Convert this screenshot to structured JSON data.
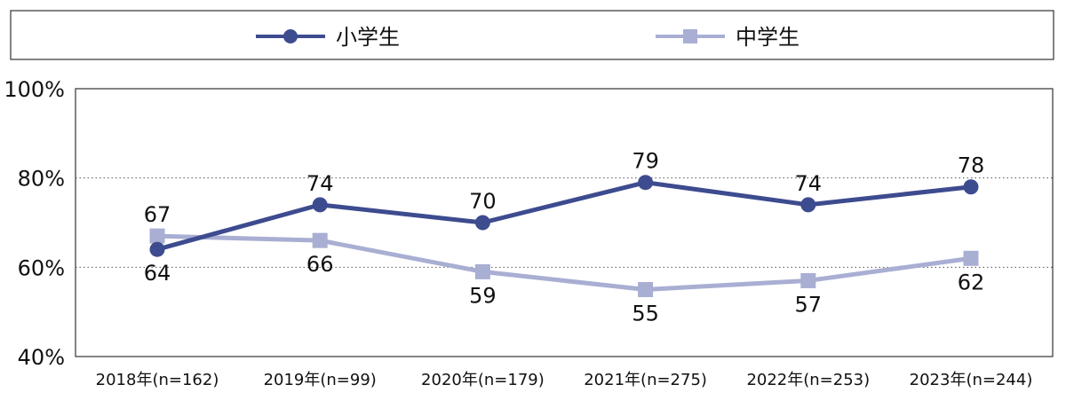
{
  "chart_data": {
    "type": "line",
    "categories": [
      "2018年(n=162)",
      "2019年(n=99)",
      "2020年(n=179)",
      "2021年(n=275)",
      "2022年(n=253)",
      "2023年(n=244)"
    ],
    "series": [
      {
        "name": "小学生",
        "values": [
          64,
          74,
          70,
          79,
          74,
          78
        ],
        "color": "#3d4b8f",
        "marker": "circle"
      },
      {
        "name": "中学生",
        "values": [
          67,
          66,
          59,
          55,
          57,
          62
        ],
        "color": "#a9aed3",
        "marker": "square"
      }
    ],
    "ylim": [
      40,
      100
    ],
    "yticks": [
      "40%",
      "60%",
      "80%",
      "100%"
    ],
    "grid": "dotted horizontal at 60% and 80%",
    "legend": "top"
  }
}
